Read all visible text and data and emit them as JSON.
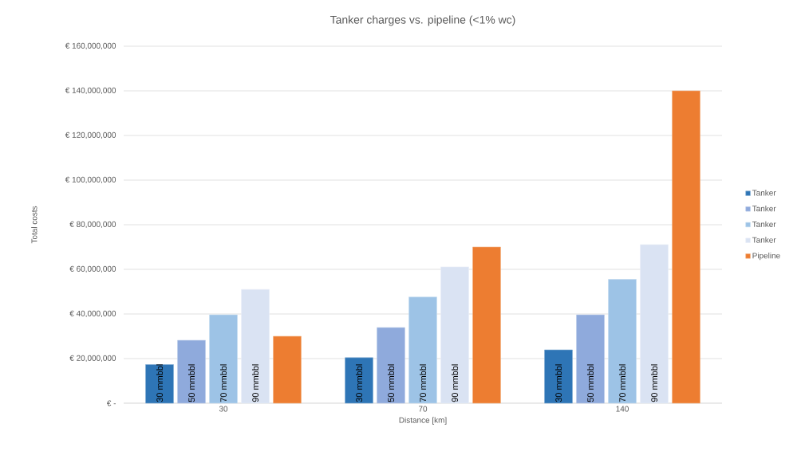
{
  "chart_data": {
    "type": "bar",
    "title": "Tanker charges vs. pipeline (<1% wc)",
    "xlabel": "Distance [km]",
    "ylabel": "Total costs",
    "categories": [
      "30",
      "70",
      "140"
    ],
    "series": [
      {
        "name": "Tanker",
        "color": "#2e75b6",
        "values": [
          17300000,
          20400000,
          23900000
        ]
      },
      {
        "name": "Tanker",
        "color": "#8faadc",
        "values": [
          28200000,
          33900000,
          39600000
        ]
      },
      {
        "name": "Tanker",
        "color": "#9dc3e6",
        "values": [
          39600000,
          47600000,
          55500000
        ]
      },
      {
        "name": "Tanker",
        "color": "#dae3f3",
        "values": [
          51000000,
          61100000,
          71100000
        ]
      },
      {
        "name": "Pipeline",
        "color": "#ed7d31",
        "values": [
          30000000,
          70000000,
          140000000
        ]
      }
    ],
    "ylim": [
      0,
      160000000
    ],
    "yticks": [
      {
        "value": 0,
        "label": "€ -"
      },
      {
        "value": 20000000,
        "label": "€ 20,000,000"
      },
      {
        "value": 40000000,
        "label": "€ 40,000,000"
      },
      {
        "value": 60000000,
        "label": "€ 60,000,000"
      },
      {
        "value": 80000000,
        "label": "€ 80,000,000"
      },
      {
        "value": 100000000,
        "label": "€ 100,000,000"
      },
      {
        "value": 120000000,
        "label": "€ 120,000,000"
      },
      {
        "value": 140000000,
        "label": "€ 140,000,000"
      },
      {
        "value": 160000000,
        "label": "€ 160,000,000"
      }
    ],
    "grid": "y",
    "legend": "right",
    "annotations": [
      "30 mmbbl",
      "50 mmbbl",
      "70 mmbbl",
      "90 mmbbl",
      "30 mmbbl",
      "50 mmbbl",
      "70 mmbbl",
      "90 mmbbl",
      "30 mmbbl",
      "50 mmbbl",
      "70 mmbbl",
      "90 mmbbl"
    ]
  }
}
